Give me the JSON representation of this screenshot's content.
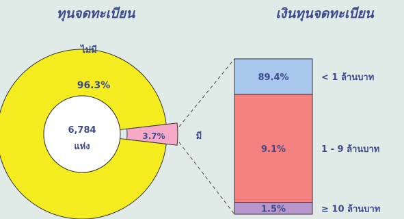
{
  "chart_data": [
    {
      "type": "donut",
      "title": "ทุนจดทะเบียน",
      "categories": [
        "ไม่มี",
        "มี"
      ],
      "values": [
        96.3,
        3.7
      ],
      "value_labels": [
        "96.3%",
        "3.7%"
      ],
      "center_label": [
        "6,784",
        "แห่ง"
      ],
      "colors": [
        "#f5ec1f",
        "#f7a9c8"
      ]
    },
    {
      "type": "bar",
      "stacked": true,
      "title": "เงินทุนจดทะเบียน",
      "categories": [
        "< 1 ล้านบาท",
        "1 - 9 ล้านบาท",
        "≥ 10 ล้านบาท"
      ],
      "values": [
        89.4,
        9.1,
        1.5
      ],
      "value_labels": [
        "89.4%",
        "9.1%",
        "1.5%"
      ],
      "colors": [
        "#a7c7ec",
        "#f58080",
        "#b898cc"
      ]
    }
  ]
}
